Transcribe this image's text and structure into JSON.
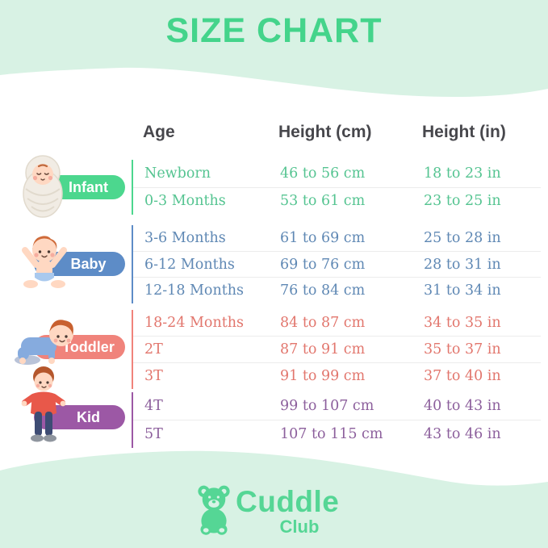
{
  "title": "SIZE CHART",
  "headers": {
    "age": "Age",
    "height_cm": "Height (cm)",
    "height_in": "Height (in)"
  },
  "groups": [
    {
      "label": "Infant",
      "pill_color": "#4cd78e",
      "text_color": "#55c491",
      "rows": [
        {
          "age": "Newborn",
          "cm": "46 to 56 cm",
          "in": "18 to 23 in"
        },
        {
          "age": "0-3 Months",
          "cm": "53 to 61 cm",
          "in": "23 to 25 in"
        }
      ]
    },
    {
      "label": "Baby",
      "pill_color": "#5d8cc7",
      "text_color": "#5f88b4",
      "rows": [
        {
          "age": "3-6 Months",
          "cm": "61 to 69 cm",
          "in": "25 to 28 in"
        },
        {
          "age": "6-12 Months",
          "cm": "69 to 76 cm",
          "in": "28 to 31 in"
        },
        {
          "age": "12-18 Months",
          "cm": "76 to 84 cm",
          "in": "31 to 34 in"
        }
      ]
    },
    {
      "label": "Toddler",
      "pill_color": "#f0837b",
      "text_color": "#e2766d",
      "rows": [
        {
          "age": "18-24 Months",
          "cm": "84 to 87 cm",
          "in": "34 to 35 in"
        },
        {
          "age": "2T",
          "cm": "87 to 91 cm",
          "in": "35 to 37 in"
        },
        {
          "age": "3T",
          "cm": "91 to 99 cm",
          "in": "37 to 40 in"
        }
      ]
    },
    {
      "label": "Kid",
      "pill_color": "#9c58a5",
      "text_color": "#8c5f9c",
      "rows": [
        {
          "age": "4T",
          "cm": "99 to 107 cm",
          "in": "40 to 43 in"
        },
        {
          "age": "5T",
          "cm": "107 to 115 cm",
          "in": "43 to 46 in"
        }
      ]
    }
  ],
  "footer": {
    "brand": "Cuddle",
    "brand_sub": "Club"
  },
  "colors": {
    "mint": "#d8f2e4",
    "title_green": "#44d48b",
    "header_text": "#47474c",
    "logo_green": "#55d695",
    "separator": "#ececec"
  },
  "chart_data": {
    "type": "table",
    "title": "SIZE CHART",
    "columns": [
      "Age",
      "Height (cm)",
      "Height (in)"
    ],
    "rows": [
      [
        "Infant",
        "Newborn",
        "46 to 56 cm",
        "18 to 23 in"
      ],
      [
        "Infant",
        "0-3 Months",
        "53 to 61 cm",
        "23 to 25 in"
      ],
      [
        "Baby",
        "3-6 Months",
        "61 to 69 cm",
        "25 to 28 in"
      ],
      [
        "Baby",
        "6-12 Months",
        "69 to 76 cm",
        "28 to 31 in"
      ],
      [
        "Baby",
        "12-18 Months",
        "76 to 84 cm",
        "31 to 34 in"
      ],
      [
        "Toddler",
        "18-24 Months",
        "84 to 87 cm",
        "34 to 35 in"
      ],
      [
        "Toddler",
        "2T",
        "87 to 91 cm",
        "35 to 37 in"
      ],
      [
        "Toddler",
        "3T",
        "91 to 99 cm",
        "37 to 40 in"
      ],
      [
        "Kid",
        "4T",
        "99 to 107 cm",
        "40 to 43 in"
      ],
      [
        "Kid",
        "5T",
        "107 to 115 cm",
        "43 to 46 in"
      ]
    ]
  }
}
